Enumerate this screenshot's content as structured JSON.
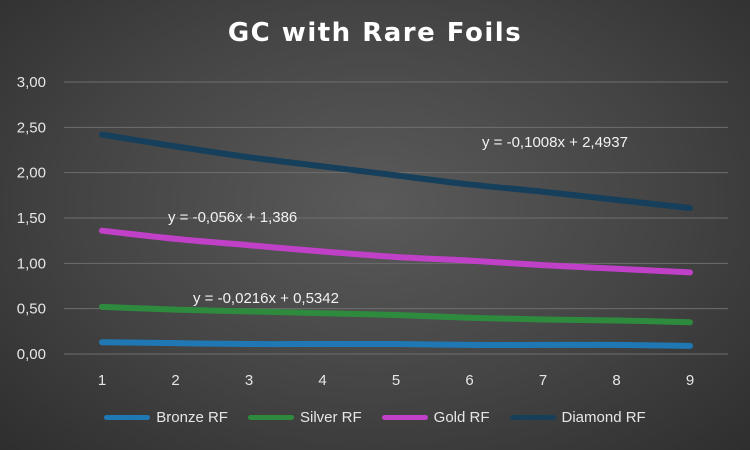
{
  "chart_data": {
    "type": "line",
    "title": "GC with Rare Foils",
    "x": [
      1,
      2,
      3,
      4,
      5,
      6,
      7,
      8,
      9
    ],
    "ylim": [
      0,
      3
    ],
    "yticks": [
      "0,00",
      "0,50",
      "1,00",
      "1,50",
      "2,00",
      "2,50",
      "3,00"
    ],
    "xticks": [
      "1",
      "2",
      "3",
      "4",
      "5",
      "6",
      "7",
      "8",
      "9"
    ],
    "grid": "horizontal",
    "legend": "bottom",
    "series": [
      {
        "name": "Bronze RF",
        "color": "#1f78b4",
        "values": [
          0.13,
          0.12,
          0.11,
          0.11,
          0.11,
          0.1,
          0.1,
          0.1,
          0.09
        ]
      },
      {
        "name": "Silver RF",
        "color": "#2e8b3e",
        "values": [
          0.52,
          0.49,
          0.47,
          0.45,
          0.43,
          0.4,
          0.38,
          0.37,
          0.35
        ]
      },
      {
        "name": "Gold RF",
        "color": "#c040c8",
        "values": [
          1.36,
          1.27,
          1.2,
          1.13,
          1.07,
          1.03,
          0.98,
          0.94,
          0.9
        ]
      },
      {
        "name": "Diamond RF",
        "color": "#163f5c",
        "values": [
          2.42,
          2.29,
          2.17,
          2.07,
          1.97,
          1.87,
          1.79,
          1.7,
          1.61
        ]
      }
    ],
    "trendlines": [
      {
        "series": "Diamond RF",
        "label": "y = -0,1008x + 2,4937"
      },
      {
        "series": "Gold RF",
        "label": "y = -0,056x + 1,386"
      },
      {
        "series": "Silver RF",
        "label": "y = -0,0216x + 0,5342"
      }
    ]
  }
}
